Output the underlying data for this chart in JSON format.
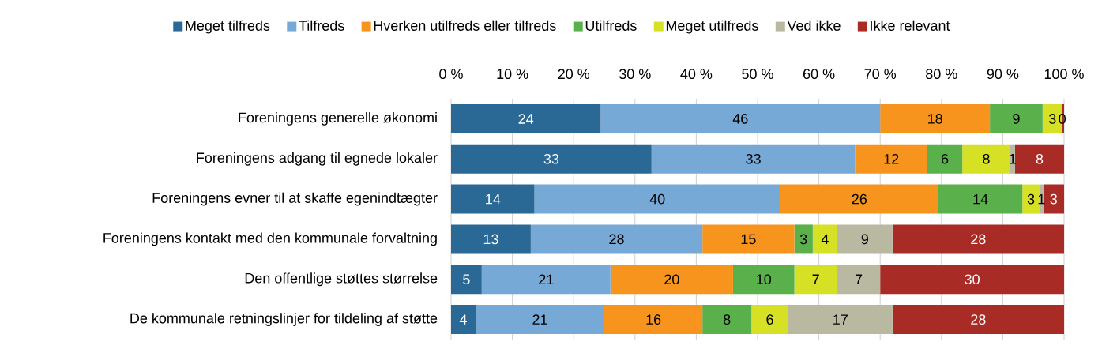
{
  "chart_data": {
    "type": "bar",
    "orientation": "horizontal",
    "stacked": true,
    "categories": [
      "Foreningens generelle økonomi",
      "Foreningens adgang til egnede lokaler",
      "Foreningens evner til at skaffe egenindtægter",
      "Foreningens kontakt med den kommunale forvaltning",
      "Den offentlige støttes størrelse",
      "De kommunale retningslinjer for tildeling af støtte"
    ],
    "series": [
      {
        "name": "Meget tilfreds",
        "color": "#2a6895",
        "values": [
          24.4,
          32.7,
          13.6,
          13,
          5,
          4
        ],
        "value_labels": [
          "24",
          "33",
          "14",
          "13",
          "5",
          "4"
        ]
      },
      {
        "name": "Tilfreds",
        "color": "#77a9d6",
        "values": [
          45.6,
          33.2,
          40.1,
          28,
          21,
          21
        ],
        "value_labels": [
          "46",
          "33",
          "40",
          "28",
          "21",
          "21"
        ]
      },
      {
        "name": "Hverken utilfreds eller tilfreds",
        "color": "#f7941d",
        "values": [
          17.9,
          11.8,
          25.8,
          15,
          20,
          16
        ],
        "value_labels": [
          "18",
          "12",
          "26",
          "15",
          "20",
          "16"
        ]
      },
      {
        "name": "Utilfreds",
        "color": "#5ab04b",
        "values": [
          8.6,
          5.7,
          13.7,
          3,
          10,
          8
        ],
        "value_labels": [
          "9",
          "6",
          "14",
          "3",
          "10",
          "8"
        ]
      },
      {
        "name": "Meget utilfreds",
        "color": "#d6e024",
        "values": [
          3.2,
          7.8,
          2.8,
          4,
          7,
          6
        ],
        "value_labels": [
          "3",
          "8",
          "3",
          "4",
          "7",
          "6"
        ]
      },
      {
        "name": "Ved ikke",
        "color": "#b9b8a0",
        "values": [
          0,
          0.8,
          0.6,
          9,
          7,
          17
        ],
        "value_labels": [
          "0",
          "1",
          "1",
          "9",
          "7",
          "17"
        ]
      },
      {
        "name": "Ikke relevant",
        "color": "#a92b26",
        "values": [
          0.3,
          8,
          3.4,
          28,
          30,
          28
        ],
        "value_labels": [
          null,
          "8",
          "3",
          "28",
          "30",
          "28"
        ]
      }
    ],
    "xlim": [
      0,
      100
    ],
    "xticks": [
      {
        "value": 0,
        "label": "0 %"
      },
      {
        "value": 10,
        "label": "10 %"
      },
      {
        "value": 20,
        "label": "20 %"
      },
      {
        "value": 30,
        "label": "30 %"
      },
      {
        "value": 40,
        "label": "40 %"
      },
      {
        "value": 50,
        "label": "50 %"
      },
      {
        "value": 60,
        "label": "60 %"
      },
      {
        "value": 70,
        "label": "70 %"
      },
      {
        "value": 80,
        "label": "80 %"
      },
      {
        "value": 90,
        "label": "90 %"
      },
      {
        "value": 100,
        "label": "100 %"
      }
    ],
    "grid": "x",
    "legend": "top"
  }
}
